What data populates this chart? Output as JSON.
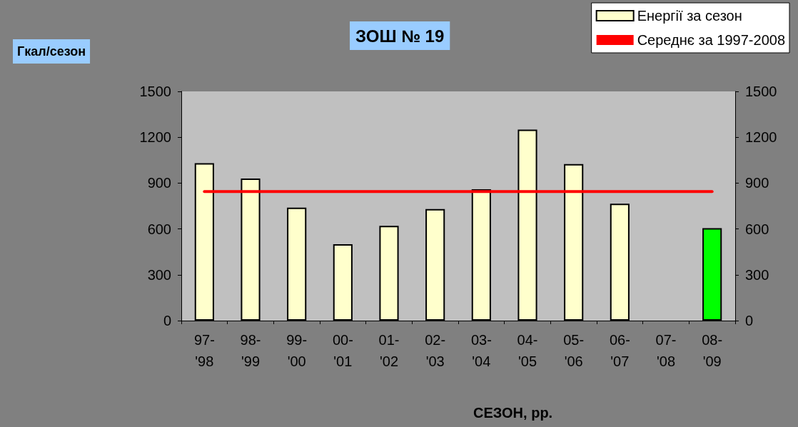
{
  "chart_data": {
    "type": "bar",
    "title": "ЗОШ № 19",
    "ylabel": "Гкал/сезон",
    "xlabel": "СЕЗОН, рр.",
    "categories": [
      "97-\n'98",
      "98-\n'99",
      "99-\n'00",
      "00-\n'01",
      "01-\n'02",
      "02-\n'03",
      "03-\n'04",
      "04-\n'05",
      "05-\n'06",
      "06-\n'07",
      "07-\n'08",
      "08-\n'09"
    ],
    "series": [
      {
        "name": "Енергії за сезон",
        "color": "#ffffcc",
        "colors": [
          "#ffffcc",
          "#ffffcc",
          "#ffffcc",
          "#ffffcc",
          "#ffffcc",
          "#ffffcc",
          "#ffffcc",
          "#ffffcc",
          "#ffffcc",
          "#ffffcc",
          "#ffffcc",
          "#00ff00"
        ],
        "values": [
          1030,
          930,
          740,
          500,
          620,
          730,
          860,
          1250,
          1025,
          765,
          null,
          605
        ]
      },
      {
        "name": "Середнє за 1997-2008",
        "type": "line",
        "color": "#ff0000",
        "marker": "none",
        "line_style": "solid",
        "values": [
          845,
          845,
          845,
          845,
          845,
          845,
          845,
          845,
          845,
          845,
          845,
          845
        ]
      }
    ],
    "ylim": [
      0,
      1500
    ],
    "yticks": [
      0,
      300,
      600,
      900,
      1200,
      1500
    ],
    "y2lim": [
      0,
      1500
    ],
    "y2ticks": [
      0,
      300,
      600,
      900,
      1200,
      1500
    ],
    "grid": false,
    "legend": "top right"
  }
}
